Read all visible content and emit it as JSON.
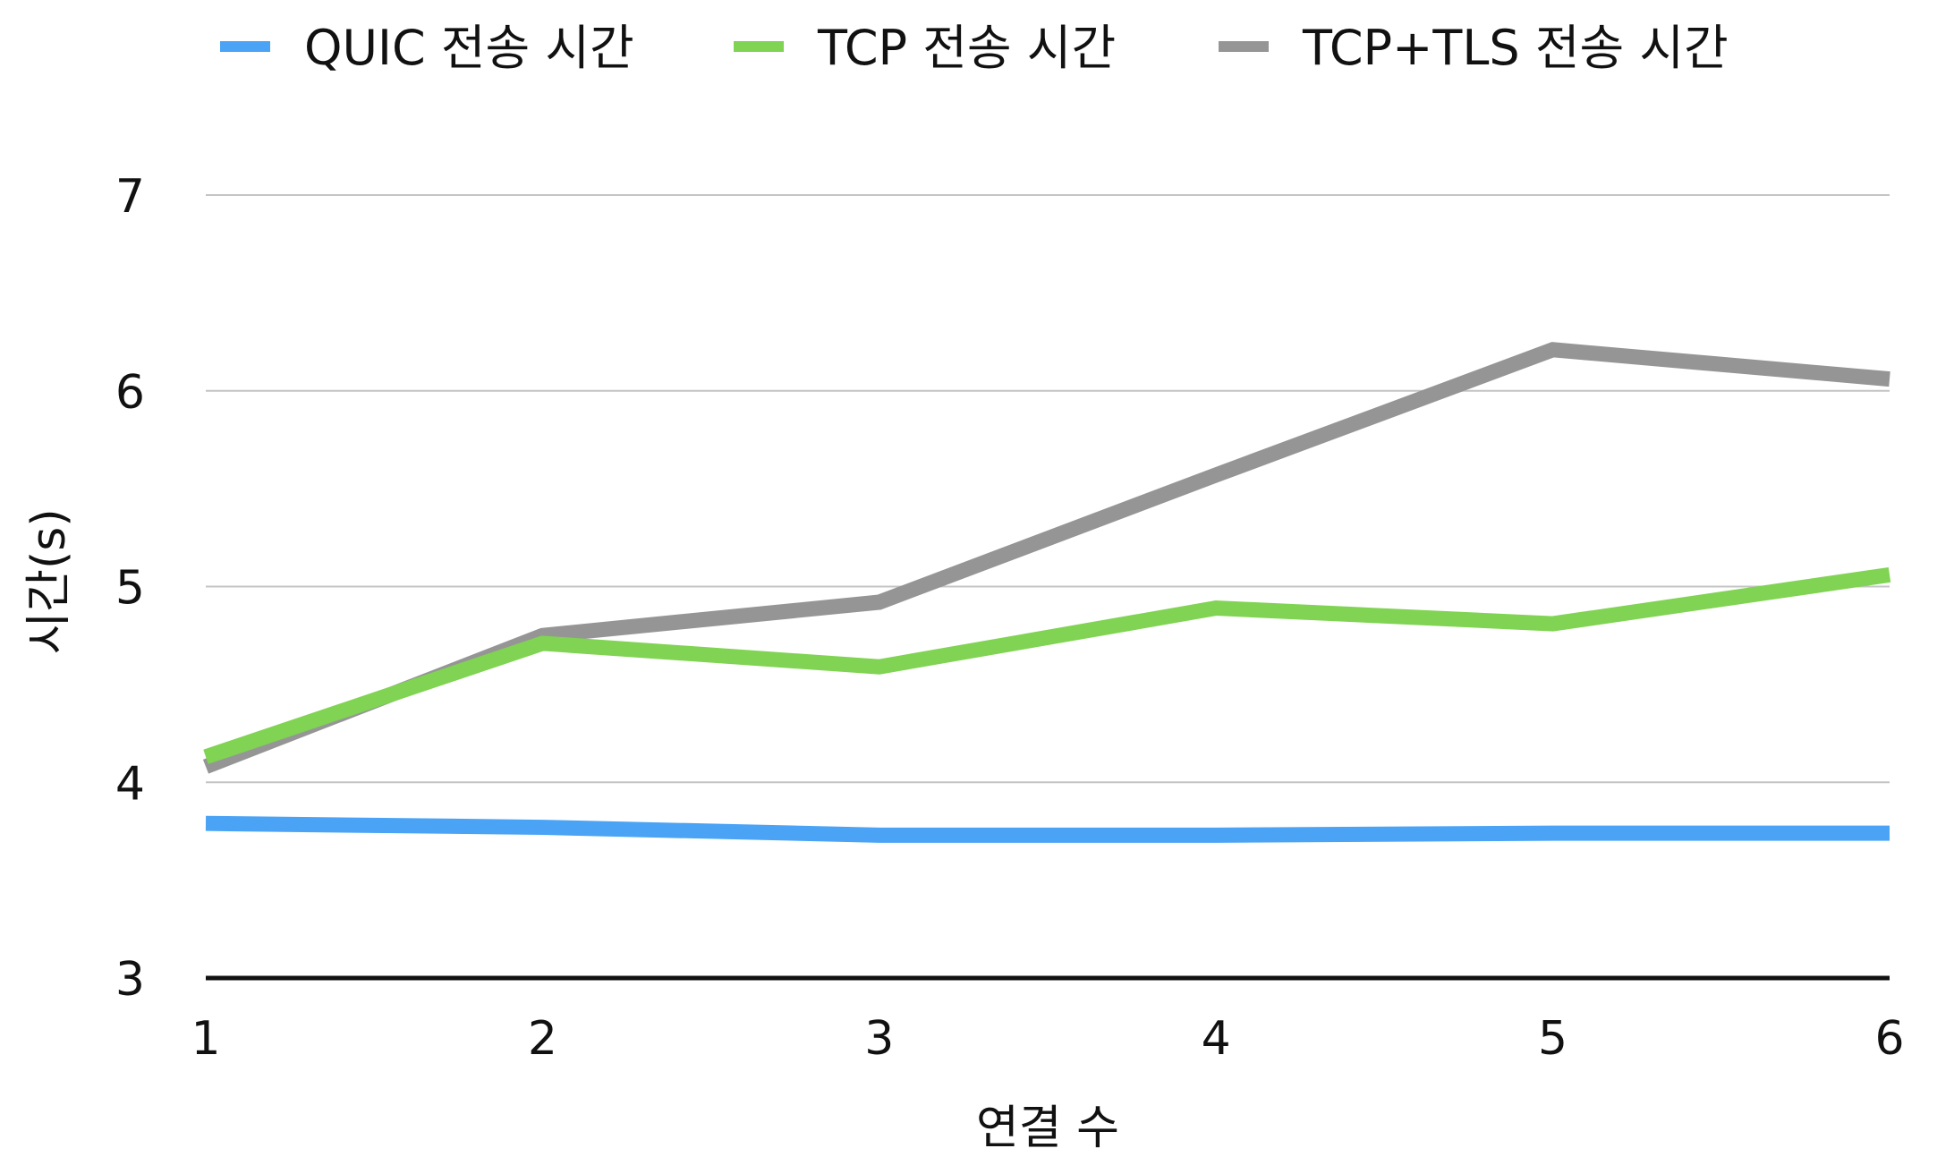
{
  "chart_data": {
    "type": "line",
    "x": [
      1,
      2,
      3,
      4,
      5,
      6
    ],
    "xlabel": "연결 수",
    "ylabel": "시간(s)",
    "ylim": [
      3,
      7
    ],
    "yticks": [
      3,
      4,
      5,
      6,
      7
    ],
    "grid": true,
    "legend_position": "top",
    "series": [
      {
        "name": "QUIC 전송 시간",
        "color": "#4aa3f5",
        "values": [
          3.79,
          3.77,
          3.73,
          3.73,
          3.74,
          3.74
        ]
      },
      {
        "name": "TCP 전송 시간",
        "color": "#80d353",
        "values": [
          4.13,
          4.71,
          4.59,
          4.89,
          4.81,
          5.06
        ]
      },
      {
        "name": "TCP+TLS 전송 시간",
        "color": "#959595",
        "values": [
          4.08,
          4.75,
          4.92,
          5.57,
          6.21,
          6.06
        ]
      }
    ]
  }
}
